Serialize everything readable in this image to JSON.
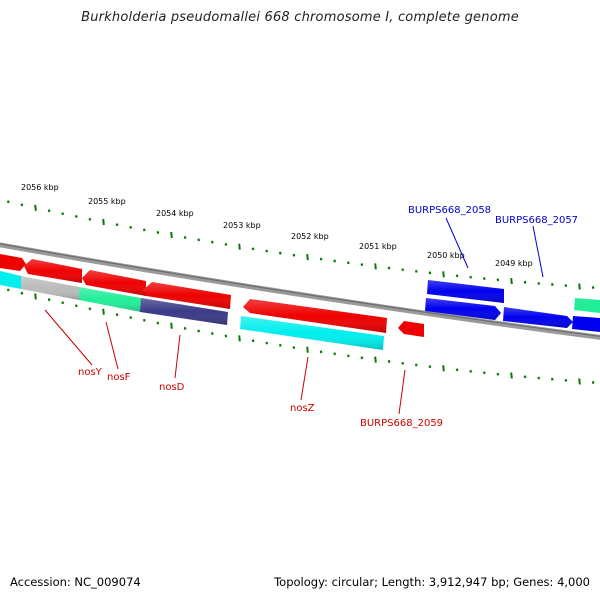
{
  "title": "Burkholderia pseudomallei 668 chromosome I, complete genome",
  "footer": {
    "accession": "Accession: NC_009074",
    "summary": "Topology: circular; Length: 3,912,947 bp; Genes: 4,000"
  },
  "colors": {
    "backbone": "#808080",
    "tick": "#0a7a0a",
    "red_gene": "#ee0000",
    "blue_gene": "#0000ee",
    "cyan_gene": "#00eeee",
    "green_gene": "#22ee99",
    "gray_gene": "#bbbbbb",
    "purple_gene": "#3a3a88",
    "red_label": "#cc0000",
    "blue_label": "#0000cc"
  },
  "scale_labels": [
    "2056 kbp",
    "2055 kbp",
    "2054 kbp",
    "2053 kbp",
    "2052 kbp",
    "2051 kbp",
    "2050 kbp",
    "2049 kbp"
  ],
  "gene_labels": {
    "nosY": "nosY",
    "nosF": "nosF",
    "nosD": "nosD",
    "nosZ": "nosZ",
    "b2059": "BURPS668_2059",
    "b2058": "BURPS668_2058",
    "b2057": "BURPS668_2057"
  }
}
